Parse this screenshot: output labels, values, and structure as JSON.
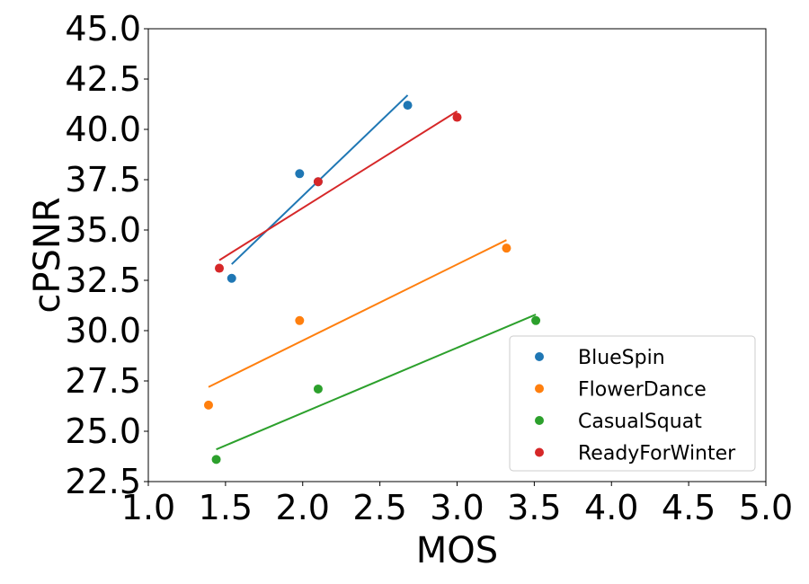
{
  "chart_data": {
    "type": "scatter",
    "title": "",
    "xlabel": "MOS",
    "ylabel": "cPSNR",
    "xlim": [
      1.0,
      5.0
    ],
    "ylim": [
      22.5,
      45.0
    ],
    "xticks": [
      "1.0",
      "1.5",
      "2.0",
      "2.5",
      "3.0",
      "3.5",
      "4.0",
      "4.5",
      "5.0"
    ],
    "yticks": [
      "22.5",
      "25.0",
      "27.5",
      "30.0",
      "32.5",
      "35.0",
      "37.5",
      "40.0",
      "42.5",
      "45.0"
    ],
    "legend_position": "lower-right",
    "grid": false,
    "series": [
      {
        "name": "BlueSpin",
        "color": "#1f77b4",
        "points": [
          [
            1.54,
            32.6
          ],
          [
            1.98,
            37.8
          ],
          [
            2.68,
            41.2
          ],
          [
            2.1,
            37.4
          ]
        ],
        "fit_line": [
          [
            1.54,
            33.3
          ],
          [
            2.68,
            41.7
          ]
        ]
      },
      {
        "name": "FlowerDance",
        "color": "#ff7f0e",
        "points": [
          [
            1.39,
            26.3
          ],
          [
            1.98,
            30.5
          ],
          [
            3.32,
            34.1
          ]
        ],
        "fit_line": [
          [
            1.39,
            27.2
          ],
          [
            3.32,
            34.5
          ]
        ]
      },
      {
        "name": "CasualSquat",
        "color": "#2ca02c",
        "points": [
          [
            1.44,
            23.6
          ],
          [
            2.1,
            27.1
          ],
          [
            3.51,
            30.5
          ]
        ],
        "fit_line": [
          [
            1.44,
            24.1
          ],
          [
            3.51,
            30.8
          ]
        ]
      },
      {
        "name": "ReadyForWinter",
        "color": "#d62728",
        "points": [
          [
            1.46,
            33.1
          ],
          [
            2.1,
            37.4
          ],
          [
            3.0,
            40.6
          ]
        ],
        "fit_line": [
          [
            1.46,
            33.5
          ],
          [
            3.0,
            40.9
          ]
        ]
      }
    ]
  }
}
